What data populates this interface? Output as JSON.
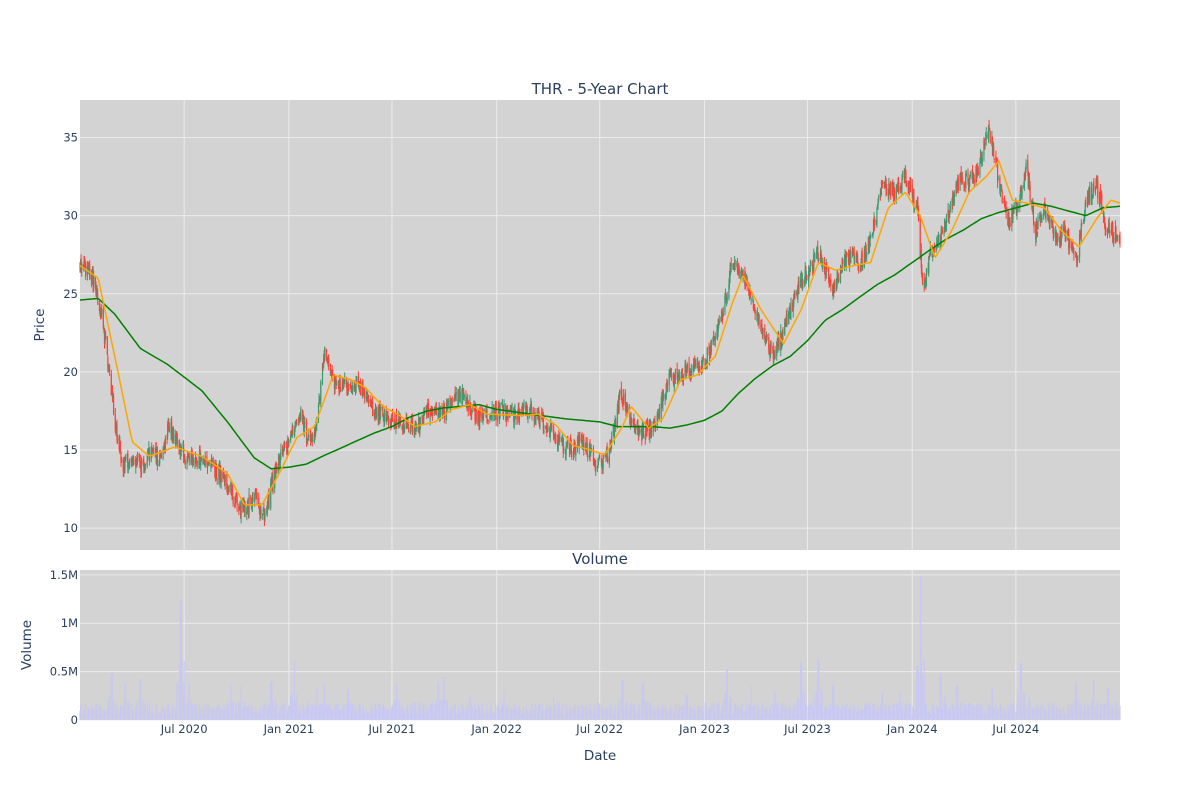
{
  "chart_data": [
    {
      "type": "candlestick",
      "title": "THR - 5-Year Chart",
      "ylabel": "Price",
      "ylim": [
        8.6,
        37.4
      ],
      "yticks": [
        10,
        15,
        20,
        25,
        30,
        35
      ],
      "date_range": [
        "2019-12-31",
        "2024-12-31"
      ],
      "xticks": [
        {
          "date": "2020-07-01",
          "label": "Jul 2020"
        },
        {
          "date": "2021-01-01",
          "label": "Jan 2021"
        },
        {
          "date": "2021-07-01",
          "label": "Jul 2021"
        },
        {
          "date": "2022-01-01",
          "label": "Jan 2022"
        },
        {
          "date": "2022-07-01",
          "label": "Jul 2022"
        },
        {
          "date": "2023-01-01",
          "label": "Jan 2023"
        },
        {
          "date": "2023-07-01",
          "label": "Jul 2023"
        },
        {
          "date": "2024-01-01",
          "label": "Jan 2024"
        },
        {
          "date": "2024-07-01",
          "label": "Jul 2024"
        }
      ],
      "grid": true,
      "colors": {
        "up": "#3d9970",
        "down": "#ff4136",
        "ma_short": "#ffa500",
        "ma_long": "#008000",
        "plot_bg": "#d3d3d3",
        "grid": "#ebebeb"
      },
      "close_keypoints": [
        [
          "2019-12-31",
          26.8
        ],
        [
          "2020-01-15",
          26.5
        ],
        [
          "2020-02-01",
          25.0
        ],
        [
          "2020-02-15",
          21.5
        ],
        [
          "2020-03-01",
          17.0
        ],
        [
          "2020-03-15",
          14.0
        ],
        [
          "2020-04-01",
          14.5
        ],
        [
          "2020-04-15",
          14.0
        ],
        [
          "2020-05-01",
          14.8
        ],
        [
          "2020-05-20",
          14.5
        ],
        [
          "2020-06-05",
          16.5
        ],
        [
          "2020-06-20",
          15.5
        ],
        [
          "2020-07-01",
          14.5
        ],
        [
          "2020-08-01",
          14.5
        ],
        [
          "2020-09-01",
          13.5
        ],
        [
          "2020-09-20",
          12.5
        ],
        [
          "2020-10-05",
          11.2
        ],
        [
          "2020-10-20",
          11.5
        ],
        [
          "2020-11-05",
          12.0
        ],
        [
          "2020-11-20",
          10.5
        ],
        [
          "2020-12-01",
          12.5
        ],
        [
          "2020-12-15",
          14.5
        ],
        [
          "2021-01-01",
          15.5
        ],
        [
          "2021-01-20",
          17.5
        ],
        [
          "2021-02-05",
          15.5
        ],
        [
          "2021-02-20",
          17.0
        ],
        [
          "2021-03-05",
          21.5
        ],
        [
          "2021-03-20",
          19.5
        ],
        [
          "2021-04-01",
          19.0
        ],
        [
          "2021-05-01",
          19.3
        ],
        [
          "2021-06-01",
          17.5
        ],
        [
          "2021-07-01",
          17.0
        ],
        [
          "2021-07-20",
          16.5
        ],
        [
          "2021-08-15",
          16.5
        ],
        [
          "2021-09-01",
          17.5
        ],
        [
          "2021-10-01",
          17.5
        ],
        [
          "2021-11-01",
          18.5
        ],
        [
          "2021-12-01",
          17.0
        ],
        [
          "2022-01-01",
          17.5
        ],
        [
          "2022-02-01",
          17.3
        ],
        [
          "2022-03-01",
          17.5
        ],
        [
          "2022-04-01",
          16.5
        ],
        [
          "2022-05-01",
          15.0
        ],
        [
          "2022-06-01",
          15.5
        ],
        [
          "2022-07-01",
          14.0
        ],
        [
          "2022-07-20",
          15.0
        ],
        [
          "2022-08-05",
          18.5
        ],
        [
          "2022-08-20",
          17.5
        ],
        [
          "2022-09-10",
          16.0
        ],
        [
          "2022-10-01",
          16.5
        ],
        [
          "2022-11-01",
          19.5
        ],
        [
          "2022-12-01",
          20.0
        ],
        [
          "2023-01-01",
          20.5
        ],
        [
          "2023-02-01",
          23.5
        ],
        [
          "2023-02-20",
          27.0
        ],
        [
          "2023-03-15",
          25.5
        ],
        [
          "2023-04-10",
          23.0
        ],
        [
          "2023-05-01",
          21.0
        ],
        [
          "2023-05-20",
          22.5
        ],
        [
          "2023-06-10",
          25.0
        ],
        [
          "2023-07-01",
          26.5
        ],
        [
          "2023-07-20",
          27.5
        ],
        [
          "2023-08-15",
          25.5
        ],
        [
          "2023-09-10",
          27.5
        ],
        [
          "2023-10-01",
          27.0
        ],
        [
          "2023-10-20",
          28.5
        ],
        [
          "2023-11-10",
          32.0
        ],
        [
          "2023-12-01",
          31.5
        ],
        [
          "2023-12-20",
          32.5
        ],
        [
          "2024-01-10",
          30.5
        ],
        [
          "2024-01-20",
          25.0
        ],
        [
          "2024-02-01",
          27.5
        ],
        [
          "2024-02-20",
          28.5
        ],
        [
          "2024-03-10",
          30.5
        ],
        [
          "2024-03-25",
          32.5
        ],
        [
          "2024-04-10",
          32.0
        ],
        [
          "2024-04-25",
          33.0
        ],
        [
          "2024-05-15",
          35.5
        ],
        [
          "2024-06-05",
          31.5
        ],
        [
          "2024-06-20",
          29.5
        ],
        [
          "2024-07-05",
          31.0
        ],
        [
          "2024-07-20",
          33.0
        ],
        [
          "2024-08-05",
          29.0
        ],
        [
          "2024-08-20",
          30.5
        ],
        [
          "2024-09-10",
          28.5
        ],
        [
          "2024-09-25",
          29.0
        ],
        [
          "2024-10-15",
          27.0
        ],
        [
          "2024-11-01",
          31.0
        ],
        [
          "2024-11-20",
          32.0
        ],
        [
          "2024-12-05",
          29.5
        ],
        [
          "2024-12-31",
          28.5
        ]
      ],
      "ma_short_keypoints": [
        [
          "2019-12-31",
          26.8
        ],
        [
          "2020-02-01",
          26.0
        ],
        [
          "2020-03-01",
          21.0
        ],
        [
          "2020-04-01",
          15.5
        ],
        [
          "2020-05-01",
          14.6
        ],
        [
          "2020-06-15",
          15.2
        ],
        [
          "2020-08-01",
          14.6
        ],
        [
          "2020-09-15",
          13.5
        ],
        [
          "2020-10-15",
          11.5
        ],
        [
          "2020-11-15",
          11.5
        ],
        [
          "2020-12-15",
          13.5
        ],
        [
          "2021-01-15",
          15.8
        ],
        [
          "2021-02-15",
          16.5
        ],
        [
          "2021-03-20",
          19.8
        ],
        [
          "2021-04-20",
          19.5
        ],
        [
          "2021-05-15",
          19.0
        ],
        [
          "2021-06-15",
          17.8
        ],
        [
          "2021-07-15",
          17.2
        ],
        [
          "2021-08-10",
          16.5
        ],
        [
          "2021-09-15",
          16.8
        ],
        [
          "2021-10-15",
          17.6
        ],
        [
          "2021-11-15",
          17.9
        ],
        [
          "2021-12-15",
          17.3
        ],
        [
          "2022-02-15",
          17.2
        ],
        [
          "2022-03-15",
          17.3
        ],
        [
          "2022-04-15",
          16.6
        ],
        [
          "2022-05-15",
          15.3
        ],
        [
          "2022-06-15",
          15.0
        ],
        [
          "2022-07-10",
          14.7
        ],
        [
          "2022-08-10",
          16.5
        ],
        [
          "2022-08-25",
          17.8
        ],
        [
          "2022-09-25",
          16.4
        ],
        [
          "2022-10-20",
          17.0
        ],
        [
          "2022-11-20",
          19.5
        ],
        [
          "2022-12-20",
          19.8
        ],
        [
          "2023-01-20",
          21.0
        ],
        [
          "2023-02-20",
          24.5
        ],
        [
          "2023-03-10",
          26.2
        ],
        [
          "2023-04-10",
          24.0
        ],
        [
          "2023-05-20",
          21.8
        ],
        [
          "2023-06-20",
          24.0
        ],
        [
          "2023-07-20",
          27.0
        ],
        [
          "2023-08-20",
          26.5
        ],
        [
          "2023-09-20",
          26.8
        ],
        [
          "2023-10-20",
          27.0
        ],
        [
          "2023-11-20",
          30.5
        ],
        [
          "2023-12-20",
          31.5
        ],
        [
          "2024-01-15",
          30.0
        ],
        [
          "2024-02-10",
          27.3
        ],
        [
          "2024-03-10",
          29.0
        ],
        [
          "2024-04-10",
          31.5
        ],
        [
          "2024-05-10",
          32.5
        ],
        [
          "2024-06-01",
          33.5
        ],
        [
          "2024-06-25",
          31.0
        ],
        [
          "2024-07-20",
          30.8
        ],
        [
          "2024-08-20",
          30.5
        ],
        [
          "2024-09-20",
          29.0
        ],
        [
          "2024-10-20",
          28.0
        ],
        [
          "2024-11-20",
          29.8
        ],
        [
          "2024-12-15",
          31.0
        ],
        [
          "2024-12-31",
          30.8
        ]
      ],
      "ma_long_keypoints": [
        [
          "2019-12-31",
          24.6
        ],
        [
          "2020-02-01",
          24.7
        ],
        [
          "2020-03-01",
          23.7
        ],
        [
          "2020-04-15",
          21.5
        ],
        [
          "2020-06-01",
          20.5
        ],
        [
          "2020-08-01",
          18.8
        ],
        [
          "2020-09-15",
          16.8
        ],
        [
          "2020-11-01",
          14.5
        ],
        [
          "2020-12-01",
          13.8
        ],
        [
          "2021-01-01",
          13.9
        ],
        [
          "2021-02-01",
          14.1
        ],
        [
          "2021-03-01",
          14.6
        ],
        [
          "2021-04-01",
          15.1
        ],
        [
          "2021-05-01",
          15.6
        ],
        [
          "2021-06-01",
          16.1
        ],
        [
          "2021-07-01",
          16.5
        ],
        [
          "2021-08-01",
          17.1
        ],
        [
          "2021-09-01",
          17.5
        ],
        [
          "2021-10-01",
          17.7
        ],
        [
          "2021-11-01",
          17.8
        ],
        [
          "2021-12-01",
          17.9
        ],
        [
          "2022-01-01",
          17.6
        ],
        [
          "2022-03-01",
          17.3
        ],
        [
          "2022-05-01",
          17.0
        ],
        [
          "2022-07-01",
          16.8
        ],
        [
          "2022-08-01",
          16.5
        ],
        [
          "2022-10-01",
          16.5
        ],
        [
          "2022-11-01",
          16.4
        ],
        [
          "2022-12-01",
          16.6
        ],
        [
          "2023-01-01",
          16.9
        ],
        [
          "2023-02-01",
          17.5
        ],
        [
          "2023-03-01",
          18.6
        ],
        [
          "2023-04-01",
          19.6
        ],
        [
          "2023-05-01",
          20.4
        ],
        [
          "2023-06-01",
          21.0
        ],
        [
          "2023-07-01",
          22.0
        ],
        [
          "2023-08-01",
          23.3
        ],
        [
          "2023-09-01",
          24.0
        ],
        [
          "2023-10-01",
          24.8
        ],
        [
          "2023-11-01",
          25.6
        ],
        [
          "2023-12-01",
          26.2
        ],
        [
          "2024-01-01",
          27.0
        ],
        [
          "2024-02-01",
          27.8
        ],
        [
          "2024-03-01",
          28.5
        ],
        [
          "2024-04-01",
          29.1
        ],
        [
          "2024-05-01",
          29.8
        ],
        [
          "2024-06-01",
          30.2
        ],
        [
          "2024-07-01",
          30.5
        ],
        [
          "2024-08-01",
          30.8
        ],
        [
          "2024-09-01",
          30.6
        ],
        [
          "2024-10-01",
          30.3
        ],
        [
          "2024-11-01",
          30.0
        ],
        [
          "2024-12-01",
          30.5
        ],
        [
          "2024-12-31",
          30.6
        ]
      ],
      "volatility": 0.7
    },
    {
      "type": "bar",
      "title": "Volume",
      "xlabel": "Date",
      "ylabel": "Volume",
      "ylim": [
        0,
        1550000
      ],
      "yticks": [
        {
          "value": 0,
          "label": "0"
        },
        {
          "value": 500000,
          "label": "0.5M"
        },
        {
          "value": 1000000,
          "label": "1M"
        },
        {
          "value": 1500000,
          "label": "1.5M"
        }
      ],
      "bar_color": "#c8c8f0",
      "baseline": 130000,
      "spikes": [
        [
          "2020-02-25",
          480000
        ],
        [
          "2020-03-20",
          390000
        ],
        [
          "2020-04-15",
          420000
        ],
        [
          "2020-06-25",
          1250000
        ],
        [
          "2020-07-10",
          380000
        ],
        [
          "2020-09-20",
          380000
        ],
        [
          "2020-10-10",
          350000
        ],
        [
          "2020-12-01",
          400000
        ],
        [
          "2021-01-10",
          600000
        ],
        [
          "2021-02-20",
          330000
        ],
        [
          "2021-03-05",
          360000
        ],
        [
          "2021-04-15",
          320000
        ],
        [
          "2021-07-10",
          380000
        ],
        [
          "2021-09-20",
          390000
        ],
        [
          "2021-10-01",
          450000
        ],
        [
          "2021-11-15",
          240000
        ],
        [
          "2022-01-15",
          280000
        ],
        [
          "2022-04-10",
          260000
        ],
        [
          "2022-08-10",
          410000
        ],
        [
          "2022-09-15",
          380000
        ],
        [
          "2022-12-01",
          260000
        ],
        [
          "2023-02-10",
          530000
        ],
        [
          "2023-03-25",
          350000
        ],
        [
          "2023-05-05",
          300000
        ],
        [
          "2023-06-20",
          590000
        ],
        [
          "2023-07-20",
          630000
        ],
        [
          "2023-08-15",
          360000
        ],
        [
          "2023-11-10",
          300000
        ],
        [
          "2023-12-10",
          280000
        ],
        [
          "2024-01-15",
          1480000
        ],
        [
          "2024-01-20",
          380000
        ],
        [
          "2024-02-20",
          480000
        ],
        [
          "2024-03-20",
          350000
        ],
        [
          "2024-05-20",
          330000
        ],
        [
          "2024-07-10",
          590000
        ],
        [
          "2024-07-25",
          230000
        ],
        [
          "2024-10-15",
          380000
        ],
        [
          "2024-11-15",
          400000
        ],
        [
          "2024-12-10",
          330000
        ]
      ]
    }
  ]
}
